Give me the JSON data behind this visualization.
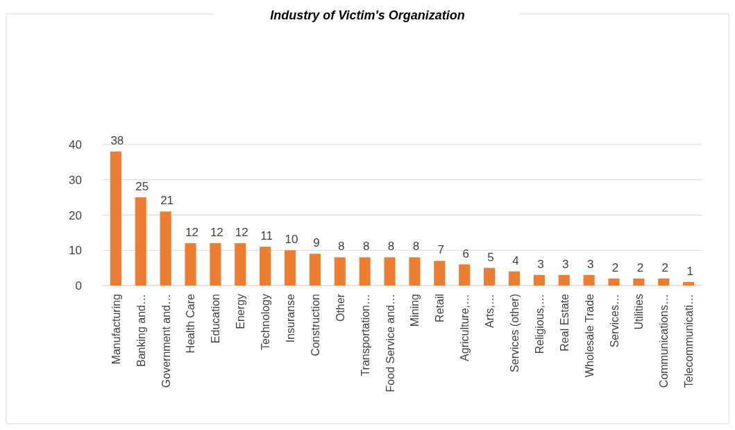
{
  "chart_data": {
    "type": "bar",
    "title": "Industry of Victim's Organization",
    "categories": [
      "Manufacturing",
      "Banking and…",
      "Government and…",
      "Health Care",
      "Education",
      "Energy",
      "Technology",
      "Insuranse",
      "Construction",
      "Other",
      "Transportation…",
      "Food Service and…",
      "Mining",
      "Retail",
      "Agriculture,…",
      "Arts,…",
      "Services (other)",
      "Religious,…",
      "Real Estate",
      "Wholesale Trade",
      "Services…",
      "Utilities",
      "Communications…",
      "Telecommunicati…"
    ],
    "values": [
      38,
      25,
      21,
      12,
      12,
      12,
      11,
      10,
      9,
      8,
      8,
      8,
      8,
      7,
      6,
      5,
      4,
      3,
      3,
      3,
      2,
      2,
      2,
      1
    ],
    "color": "#ed7d31",
    "ylim": [
      0,
      40
    ],
    "yticks": [
      0,
      10,
      20,
      30,
      40
    ],
    "grid": "y",
    "data_labels": true
  }
}
